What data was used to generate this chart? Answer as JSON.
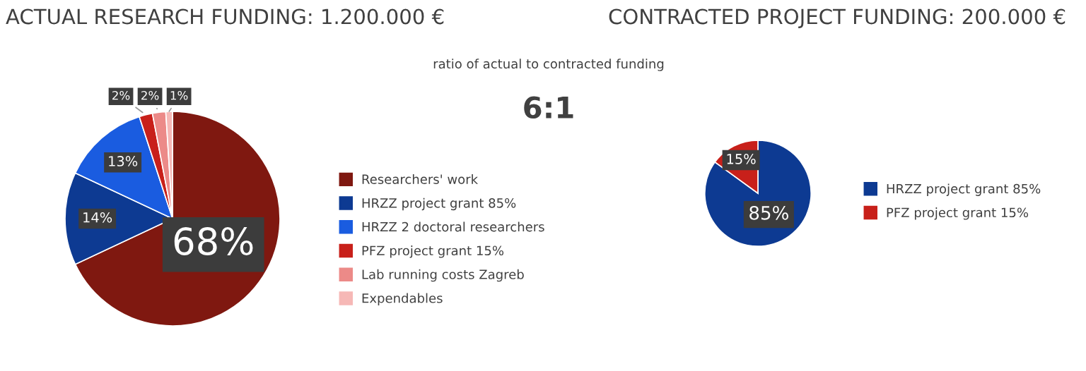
{
  "chart_data": [
    {
      "type": "pie",
      "title": "ACTUAL RESEARCH FUNDING: 1.200.000 €",
      "categories": [
        "Researchers' work",
        "HRZZ project grant 85%",
        "HRZZ 2 doctoral researchers",
        "PFZ project grant 15%",
        "Lab running costs Zagreb",
        "Expendables"
      ],
      "values": [
        68,
        14,
        13,
        2,
        2,
        1
      ],
      "value_labels": [
        "68%",
        "14%",
        "13%",
        "2%",
        "2%",
        "1%"
      ],
      "colors": [
        "#7f1810",
        "#0d3a92",
        "#1a5ce0",
        "#c8201a",
        "#ec8a88",
        "#f6b8b6"
      ],
      "legend": "right"
    },
    {
      "type": "other",
      "annotations": [
        "ratio of actual to contracted funding",
        "6:1"
      ]
    },
    {
      "type": "pie",
      "title": "CONTRACTED PROJECT FUNDING: 200.000 €",
      "categories": [
        "HRZZ project grant 85%",
        "PFZ project grant 15%"
      ],
      "values": [
        85,
        15
      ],
      "value_labels": [
        "85%",
        "15%"
      ],
      "colors": [
        "#0d3a92",
        "#c8201a"
      ],
      "legend": "right"
    }
  ]
}
